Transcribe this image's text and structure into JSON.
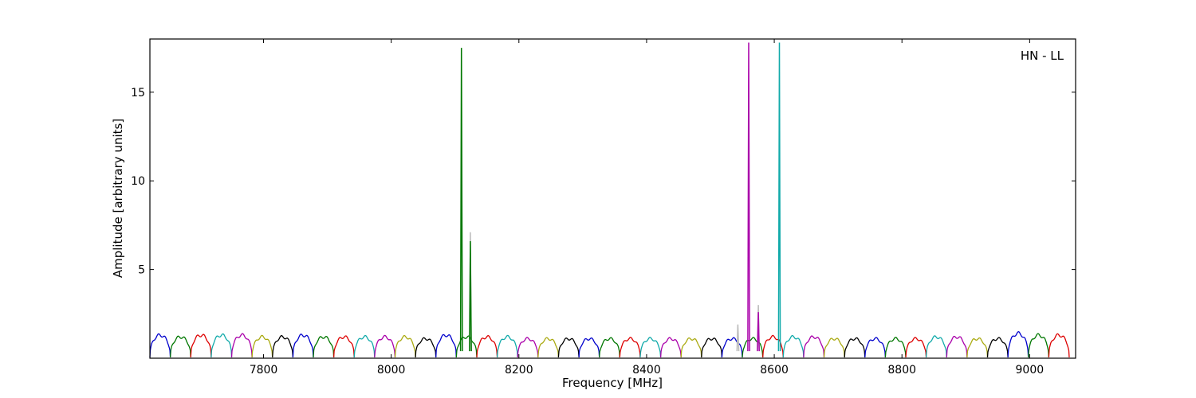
{
  "chart_data": {
    "type": "line",
    "title": "",
    "xlabel": "Frequency [MHz]",
    "ylabel": "Amplitude [arbitrary units]",
    "xlim": [
      7622,
      9072
    ],
    "ylim": [
      0,
      18
    ],
    "xticks": [
      7800,
      8000,
      8200,
      8400,
      8600,
      8800,
      9000
    ],
    "yticks": [
      5,
      10,
      15
    ],
    "annotation": "HN - LL",
    "annotation_position": "top-right",
    "grid": false,
    "channel_width_mhz": 32,
    "channel_colors": [
      "#0000cc",
      "#007700",
      "#dd0000",
      "#11aaaa",
      "#aa00aa",
      "#aaaa11",
      "#000000"
    ],
    "channel_starts": [
      7622,
      7654,
      7686,
      7718,
      7750,
      7782,
      7814,
      7846,
      7878,
      7910,
      7942,
      7974,
      8006,
      8038,
      8070,
      8102,
      8134,
      8166,
      8198,
      8230,
      8262,
      8294,
      8326,
      8358,
      8390,
      8422,
      8454,
      8486,
      8518,
      8550,
      8582,
      8614,
      8646,
      8678,
      8710,
      8742,
      8774,
      8806,
      8838,
      8870,
      8902,
      8934,
      8966,
      8998,
      9030
    ],
    "channel_levels": [
      1.3,
      1.2,
      1.3,
      1.3,
      1.3,
      1.2,
      1.2,
      1.3,
      1.2,
      1.2,
      1.2,
      1.2,
      1.2,
      1.1,
      1.3,
      1.2,
      1.2,
      1.2,
      1.1,
      1.1,
      1.1,
      1.1,
      1.1,
      1.1,
      1.1,
      1.1,
      1.1,
      1.1,
      1.1,
      1.1,
      1.2,
      1.2,
      1.2,
      1.1,
      1.1,
      1.1,
      1.1,
      1.1,
      1.2,
      1.2,
      1.1,
      1.1,
      1.4,
      1.3,
      1.3
    ],
    "spikes": [
      {
        "x": 8110,
        "y": 17.5,
        "color": "#007700"
      },
      {
        "x": 8124,
        "y": 7.1,
        "color": "#bbbbbb"
      },
      {
        "x": 8124,
        "y": 6.6,
        "color": "#007700"
      },
      {
        "x": 8543,
        "y": 1.9,
        "color": "#bbbbbb"
      },
      {
        "x": 8560,
        "y": 17.8,
        "color": "#aa00aa"
      },
      {
        "x": 8575,
        "y": 3.0,
        "color": "#bbbbbb"
      },
      {
        "x": 8575,
        "y": 2.6,
        "color": "#aa00aa"
      },
      {
        "x": 8608,
        "y": 17.8,
        "color": "#11aaaa"
      }
    ]
  }
}
